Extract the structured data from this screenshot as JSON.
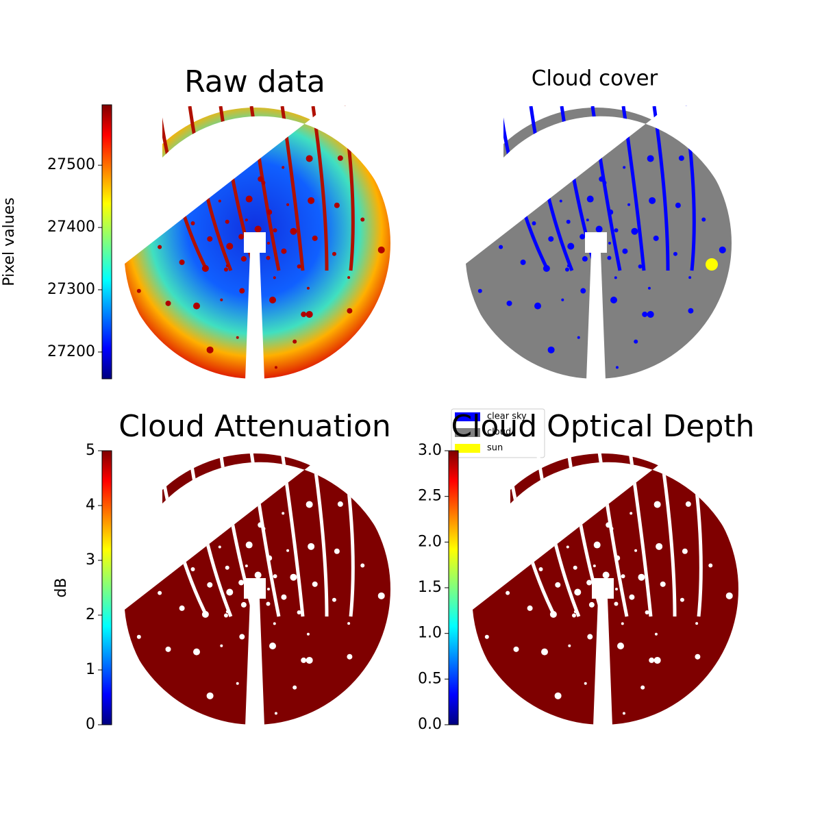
{
  "chart_data": [
    {
      "type": "image",
      "title": "Raw data",
      "ylabel": "Pixel values",
      "colormap": "jet",
      "ylim": [
        27157,
        27597
      ],
      "yticks": [
        27200,
        27300,
        27400,
        27500
      ]
    },
    {
      "type": "image",
      "title": "Cloud cover",
      "series": [
        {
          "name": "clear sky",
          "color": "#0000ff"
        },
        {
          "name": "cloud",
          "color": "#808080"
        },
        {
          "name": "sun",
          "color": "#ffff00"
        }
      ]
    },
    {
      "type": "image",
      "title": "Cloud Attenuation",
      "ylabel": "dB",
      "colormap": "jet",
      "ylim": [
        0,
        5
      ],
      "yticks": [
        0,
        1,
        2,
        3,
        4,
        5
      ]
    },
    {
      "type": "image",
      "title": "Cloud Optical Depth",
      "colormap": "jet",
      "ylim": [
        0,
        3
      ],
      "yticks": [
        {
          "value": 0,
          "label": "0.0"
        },
        0.5,
        {
          "value": 1,
          "label": "1.0"
        },
        1.5,
        {
          "value": 2,
          "label": "2.0"
        },
        2.5,
        {
          "value": 3,
          "label": "3.0"
        }
      ]
    }
  ]
}
